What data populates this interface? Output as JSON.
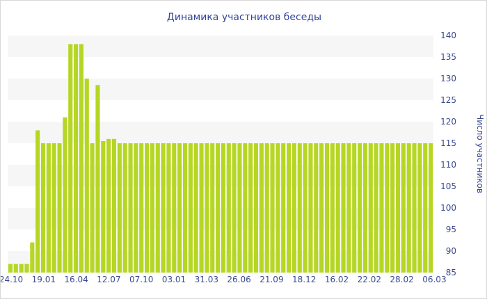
{
  "chart_data": {
    "type": "bar",
    "title": "Динамика участников беседы",
    "ylabel": "Число участников",
    "xlabel": "",
    "ylim": [
      85,
      140
    ],
    "y_ticks": [
      85,
      90,
      95,
      100,
      105,
      110,
      115,
      120,
      125,
      130,
      135,
      140
    ],
    "x_tick_labels": [
      "24.10",
      "19.01",
      "16.04",
      "12.07",
      "07.10",
      "03.01",
      "31.03",
      "26.06",
      "21.09",
      "18.12",
      "16.02",
      "22.02",
      "28.02",
      "06.03"
    ],
    "y_axis_position": "right",
    "grid": "horizontal alternating bands",
    "bar_color": "#b5d724",
    "values": [
      87,
      87,
      87,
      87,
      92,
      118,
      115,
      115,
      115,
      115,
      121,
      138,
      138,
      138,
      130,
      115,
      128.5,
      115.5,
      116,
      116,
      115,
      115,
      115,
      115,
      115,
      115,
      115,
      115,
      115,
      115,
      115,
      115,
      115,
      115,
      115,
      115,
      115,
      115,
      115,
      115,
      115,
      115,
      115,
      115,
      115,
      115,
      115,
      115,
      115,
      115,
      115,
      115,
      115,
      115,
      115,
      115,
      115,
      115,
      115,
      115,
      115,
      115,
      115,
      115,
      115,
      115,
      115,
      115,
      115,
      115,
      115,
      115,
      115,
      115,
      115,
      115,
      115,
      115
    ]
  }
}
